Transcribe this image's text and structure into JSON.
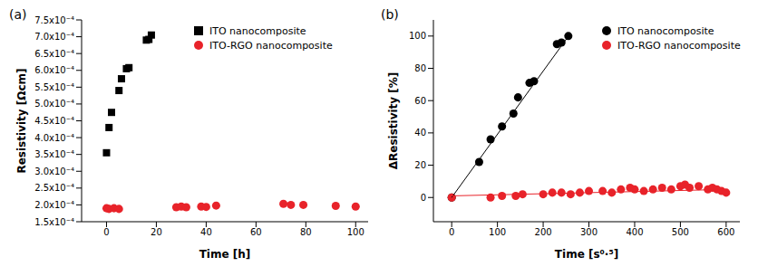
{
  "chart_data": [
    {
      "type": "scatter",
      "label": "(a)",
      "x_label": "Time [h]",
      "y_label": "Resistivity [Ωcm]",
      "xlim": [
        -10,
        105
      ],
      "xticks": [
        0,
        20,
        40,
        60,
        80,
        100
      ],
      "ylim": [
        0.00015,
        0.00075
      ],
      "yticks": [
        {
          "value": 0.00015,
          "label": "1.5x10⁻⁴"
        },
        {
          "value": 0.0002,
          "label": "2.0x10⁻⁴"
        },
        {
          "value": 0.00025,
          "label": "2.5x10⁻⁴"
        },
        {
          "value": 0.0003,
          "label": "3.0x10⁻⁴"
        },
        {
          "value": 0.00035,
          "label": "3.5x10⁻⁴"
        },
        {
          "value": 0.0004,
          "label": "4.0x10⁻⁴"
        },
        {
          "value": 0.00045,
          "label": "4.5x10⁻⁴"
        },
        {
          "value": 0.0005,
          "label": "5.0x10⁻⁴"
        },
        {
          "value": 0.00055,
          "label": "5.5x10⁻⁴"
        },
        {
          "value": 0.0006,
          "label": "6.0x10⁻⁴"
        },
        {
          "value": 0.00065,
          "label": "6.5x10⁻⁴"
        },
        {
          "value": 0.0007,
          "label": "7.0x10⁻⁴"
        },
        {
          "value": 0.00075,
          "label": "7.5x10⁻⁴"
        }
      ],
      "series": [
        {
          "name": "ITO nanocomposite",
          "color": "#000000",
          "marker": "square",
          "x": [
            0,
            1,
            2,
            5,
            6,
            8,
            9,
            16,
            17,
            18
          ],
          "values": [
            0.000355,
            0.00043,
            0.000475,
            0.00054,
            0.000575,
            0.000605,
            0.000608,
            0.00069,
            0.000692,
            0.000705
          ]
        },
        {
          "name": "ITO-RGO nanocomposite",
          "color": "#e8232a",
          "marker": "circle",
          "x": [
            0,
            1,
            3,
            5,
            28,
            30,
            32,
            38,
            40,
            44,
            71,
            74,
            79,
            92,
            100
          ],
          "values": [
            0.00019,
            0.000188,
            0.00019,
            0.000188,
            0.000193,
            0.000195,
            0.000193,
            0.000195,
            0.000194,
            0.000198,
            0.000203,
            0.0002,
            0.0002,
            0.000197,
            0.000195
          ]
        }
      ]
    },
    {
      "type": "scatter",
      "label": "(b)",
      "x_label": "Time [s⁰·⁵]",
      "y_label": "ΔResistivity [%]",
      "xlim": [
        -40,
        630
      ],
      "xticks": [
        0,
        100,
        200,
        300,
        400,
        500,
        600
      ],
      "ylim": [
        -15,
        110
      ],
      "yticks": [
        0,
        20,
        40,
        60,
        80,
        100
      ],
      "series": [
        {
          "name": "ITO nanocomposite",
          "color": "#000000",
          "marker": "circle",
          "x": [
            0,
            60,
            85,
            110,
            135,
            145,
            170,
            180,
            230,
            240,
            255
          ],
          "values": [
            0,
            22,
            36,
            44,
            52,
            62,
            71,
            72,
            95,
            96,
            100
          ],
          "fit": {
            "x": [
              0,
              258
            ],
            "y": [
              0,
              101
            ]
          }
        },
        {
          "name": "ITO-RGO nanocomposite",
          "color": "#e8232a",
          "marker": "circle",
          "x": [
            0,
            85,
            110,
            140,
            155,
            200,
            220,
            240,
            260,
            280,
            300,
            330,
            350,
            370,
            390,
            400,
            420,
            440,
            460,
            480,
            500,
            510,
            520,
            540,
            560,
            570,
            580,
            590,
            600
          ],
          "values": [
            0,
            0,
            1,
            1,
            2,
            2,
            3,
            3,
            2,
            3,
            4,
            4,
            3,
            5,
            6,
            5,
            4,
            5,
            6,
            5,
            7,
            8,
            6,
            7,
            5,
            6,
            5,
            4,
            3
          ],
          "fit": {
            "x": [
              0,
              600
            ],
            "y": [
              1,
              5
            ]
          }
        }
      ]
    }
  ]
}
